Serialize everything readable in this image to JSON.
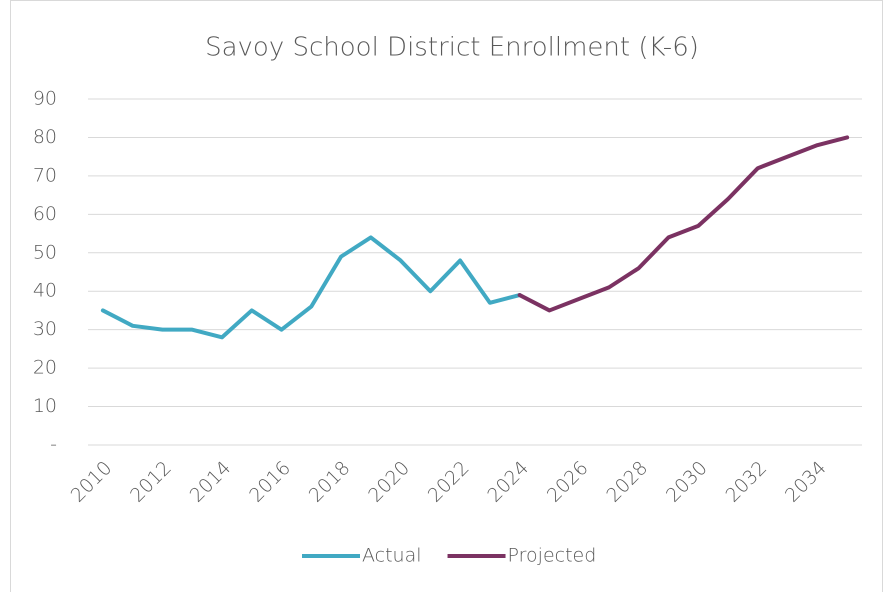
{
  "chart_data": {
    "type": "line",
    "title": "Savoy School District Enrollment (K-6)",
    "categories": [
      "2010",
      null,
      "2012",
      null,
      "2014",
      null,
      "2016",
      null,
      "2018",
      null,
      "2020",
      null,
      "2022",
      null,
      "2024",
      null,
      "2026",
      null,
      "2028",
      null,
      "2030",
      null,
      "2032",
      null,
      "2034",
      null
    ],
    "series": [
      {
        "name": "Actual",
        "color": "#41a9c3",
        "values": [
          35,
          31,
          30,
          30,
          28,
          35,
          30,
          36,
          49,
          54,
          48,
          40,
          48,
          37,
          39,
          null,
          null,
          null,
          null,
          null,
          null,
          null,
          null,
          null,
          null,
          null
        ]
      },
      {
        "name": "Projected",
        "color": "#7b3262",
        "values": [
          null,
          null,
          null,
          null,
          null,
          null,
          null,
          null,
          null,
          null,
          null,
          null,
          null,
          null,
          39,
          35,
          38,
          41,
          46,
          54,
          57,
          64,
          72,
          75,
          78,
          80
        ]
      }
    ],
    "ylim": [
      0,
      90
    ],
    "yticks": [
      {
        "value": 0,
        "label": "-"
      },
      10,
      20,
      30,
      40,
      50,
      60,
      70,
      80,
      90
    ],
    "grid": true,
    "legend": "bottom"
  }
}
